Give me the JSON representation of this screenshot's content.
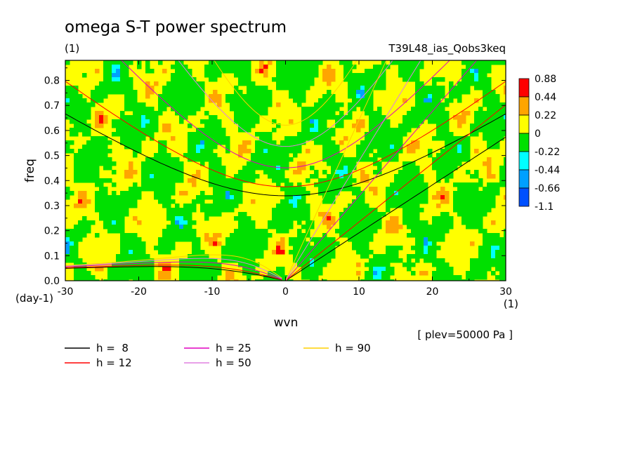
{
  "header": {
    "title": "omega S-T power spectrum",
    "units": "(1)",
    "experiment": "T39L48_ias_Qobs3keq"
  },
  "chart_data": {
    "type": "heatmap",
    "title": "omega S-T power spectrum",
    "xlabel": "wvn",
    "ylabel": "freq",
    "x_unit_label": "(1)",
    "y_unit_label": "(day-1)",
    "xlim": [
      -30,
      30
    ],
    "ylim": [
      0.0,
      0.88
    ],
    "xticks": [
      -30,
      -20,
      -10,
      0,
      10,
      20,
      30
    ],
    "xtick_labels": [
      "-30",
      "-20",
      "-10",
      "0",
      "10",
      "20",
      "30"
    ],
    "yticks": [
      0.0,
      0.1,
      0.2,
      0.3,
      0.4,
      0.5,
      0.6,
      0.7,
      0.8
    ],
    "ytick_labels": [
      "0.0",
      "0.1",
      "0.2",
      "0.3",
      "0.4",
      "0.5",
      "0.6",
      "0.7",
      "0.8"
    ],
    "contour_levels": [
      "0.88",
      "0.44",
      "0.22",
      "0",
      "-0.22",
      "-0.44",
      "-0.66",
      "-1.1"
    ],
    "level_colors": [
      "#ff0000",
      "#ffa500",
      "#ffff00",
      "#00e000",
      "#00ffff",
      "#00a0ff",
      "#0050ff"
    ],
    "annotation": "[ plev=50000 Pa ]",
    "dispersion_curves": [
      {
        "name": "h =  8",
        "label": "h =  8",
        "color": "#000000",
        "h": 8
      },
      {
        "name": "h = 12",
        "label": "h = 12",
        "color": "#ff0000",
        "h": 12
      },
      {
        "name": "h = 25",
        "label": "h = 25",
        "color": "#e000c0",
        "h": 25
      },
      {
        "name": "h = 50",
        "label": "h = 50",
        "color": "#e080e0",
        "h": 50
      },
      {
        "name": "h = 90",
        "label": "h = 90",
        "color": "#ffd000",
        "h": 90
      }
    ]
  }
}
